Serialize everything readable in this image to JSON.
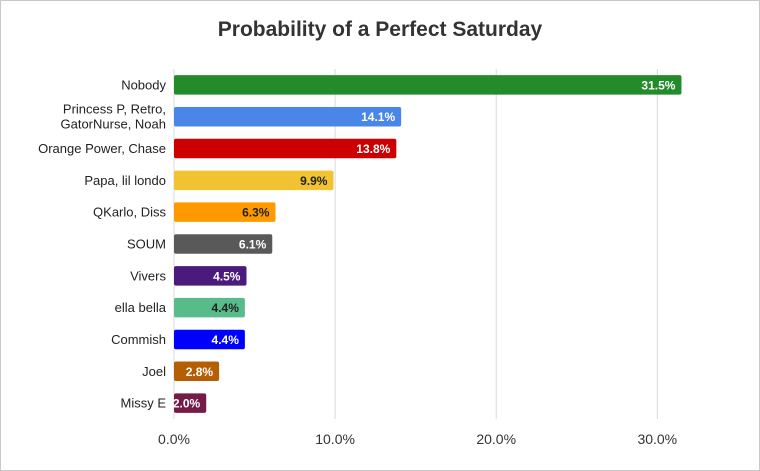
{
  "chart_data": {
    "type": "bar",
    "orientation": "horizontal",
    "title": "Probability of a Perfect Saturday",
    "xlabel": "",
    "ylabel": "",
    "xlim": [
      0,
      32
    ],
    "ticks": [
      0,
      10,
      20,
      30
    ],
    "tick_labels": [
      "0.0%",
      "10.0%",
      "20.0%",
      "30.0%"
    ],
    "grid": true,
    "legend": "none",
    "categories": [
      [
        "Nobody"
      ],
      [
        "Princess P, Retro,",
        "GatorNurse, Noah"
      ],
      [
        "Orange Power, Chase"
      ],
      [
        "Papa, lil londo"
      ],
      [
        "QKarlo, Diss"
      ],
      [
        "SOUM"
      ],
      [
        "Vivers"
      ],
      [
        "ella bella"
      ],
      [
        "Commish"
      ],
      [
        "Joel"
      ],
      [
        "Missy E"
      ]
    ],
    "values": [
      31.5,
      14.1,
      13.8,
      9.9,
      6.3,
      6.1,
      4.5,
      4.4,
      4.4,
      2.8,
      2.0
    ],
    "value_labels": [
      "31.5%",
      "14.1%",
      "13.8%",
      "9.9%",
      "6.3%",
      "6.1%",
      "4.5%",
      "4.4%",
      "4.4%",
      "2.8%",
      "2.0%"
    ],
    "colors": [
      "#238b2a",
      "#4a86e8",
      "#cc0000",
      "#f1c232",
      "#ff9900",
      "#595959",
      "#4b1a7d",
      "#57bb8a",
      "#0000ff",
      "#b45f06",
      "#741b47"
    ],
    "label_colors": [
      "#ffffff",
      "#ffffff",
      "#ffffff",
      "#222222",
      "#222222",
      "#ffffff",
      "#ffffff",
      "#222222",
      "#ffffff",
      "#ffffff",
      "#ffffff"
    ]
  }
}
